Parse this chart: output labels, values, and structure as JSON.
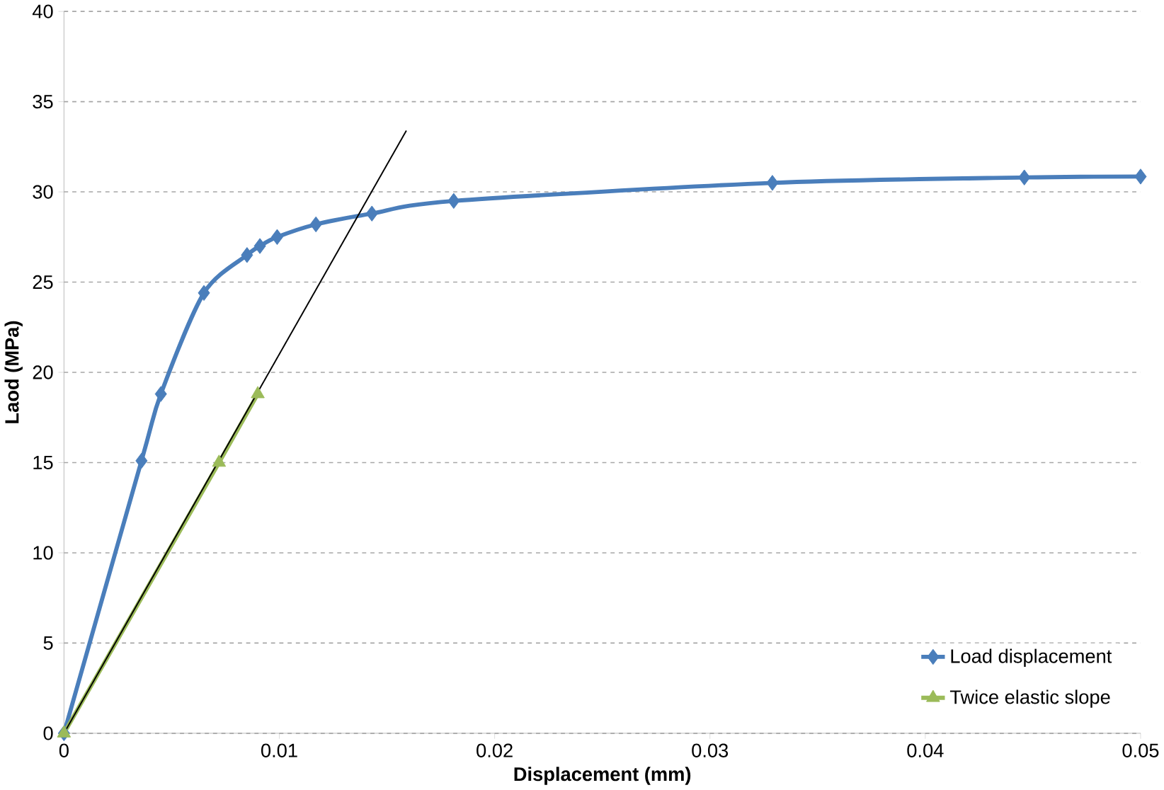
{
  "chart_data": {
    "type": "line",
    "xlabel": "Displacement (mm)",
    "ylabel": "Laod (MPa)",
    "xlim": [
      0,
      0.05
    ],
    "ylim": [
      0,
      40
    ],
    "xticks": [
      0,
      0.01,
      0.02,
      0.03,
      0.04,
      0.05
    ],
    "yticks": [
      0,
      5,
      10,
      15,
      20,
      25,
      30,
      35,
      40
    ],
    "grid": "y",
    "legend": "bottom right",
    "series": [
      {
        "name": "Load displacement",
        "color": "#4a7ebb",
        "marker": "diamond",
        "x": [
          0,
          0.0036,
          0.0045,
          0.0065,
          0.0085,
          0.0091,
          0.0099,
          0.0117,
          0.0143,
          0.0181,
          0.0329,
          0.0446,
          0.05
        ],
        "values": [
          0,
          15.1,
          18.8,
          24.4,
          26.5,
          27.0,
          27.5,
          28.2,
          28.8,
          29.5,
          30.5,
          30.8,
          30.85
        ]
      },
      {
        "name": "Twice elastic slope",
        "color": "#9bbb59",
        "marker": "triangle",
        "x": [
          0,
          0.0072,
          0.009
        ],
        "values": [
          0,
          15,
          18.8
        ]
      },
      {
        "type": "line",
        "color": "#000000",
        "marker": "none",
        "x": [
          0,
          0.0159
        ],
        "values": [
          0,
          33.4
        ]
      }
    ]
  }
}
